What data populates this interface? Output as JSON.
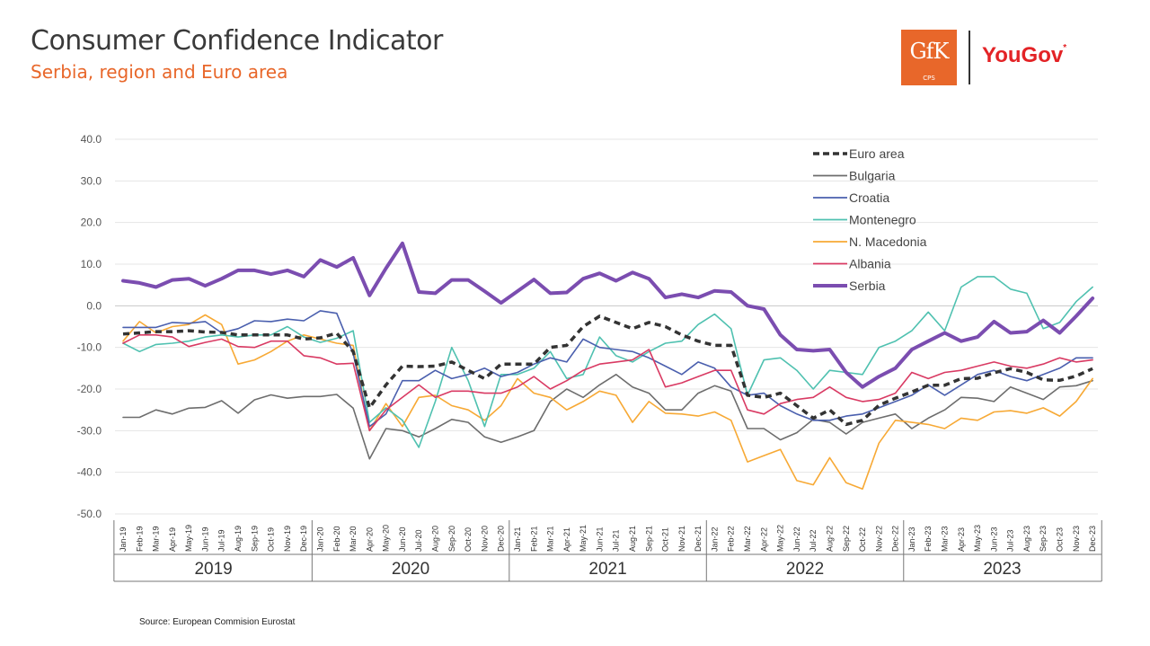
{
  "header": {
    "title": "Consumer Confidence Indicator",
    "subtitle": "Serbia, region and Euro area"
  },
  "logos": {
    "gfk": "GfK",
    "gfk_sub": "CPS",
    "yougov": "YouGov",
    "yougov_mark": "*"
  },
  "footer": {
    "source": "Source: European Commision Eurostat"
  },
  "colors": {
    "Euro area": "#333333",
    "Bulgaria": "#6d6d6d",
    "Croatia": "#4a5fae",
    "Montenegro": "#4fc1b0",
    "N. Macedonia": "#f7a935",
    "Albania": "#d93a63",
    "Serbia": "#7b4db0"
  },
  "chart_data": {
    "type": "line",
    "ylim": [
      -50,
      40
    ],
    "yticks": [
      "40.0",
      "30.0",
      "20.0",
      "10.0",
      "0.0",
      "-10.0",
      "-20.0",
      "-30.0",
      "-40.0",
      "-50.0"
    ],
    "ytick_values": [
      40,
      30,
      20,
      10,
      0,
      -10,
      -20,
      -30,
      -40,
      -50
    ],
    "x": [
      "Jan-19",
      "Feb-19",
      "Mar-19",
      "Apr-19",
      "May-19",
      "Jun-19",
      "Jul-19",
      "Aug-19",
      "Sep-19",
      "Oct-19",
      "Nov-19",
      "Dec-19",
      "Jan-20",
      "Feb-20",
      "Mar-20",
      "Apr-20",
      "May-20",
      "Jun-20",
      "Jul-20",
      "Aug-20",
      "Sep-20",
      "Oct-20",
      "Nov-20",
      "Dec-20",
      "Jan-21",
      "Feb-21",
      "Mar-21",
      "Apr-21",
      "May-21",
      "Jun-21",
      "Jul-21",
      "Aug-21",
      "Sep-21",
      "Oct-21",
      "Nov-21",
      "Dec-21",
      "Jan-22",
      "Feb-22",
      "Mar-22",
      "Apr-22",
      "May-22",
      "Jun-22",
      "Jul-22",
      "Aug-22",
      "Sep-22",
      "Oct-22",
      "Nov-22",
      "Dec-22",
      "Jan-23",
      "Feb-23",
      "Mar-23",
      "Apr-23",
      "May-23",
      "Jun-23",
      "Jul-23",
      "Aug-23",
      "Sep-23",
      "Oct-23",
      "Nov-23",
      "Dec-23"
    ],
    "year_groups": [
      {
        "label": "2019",
        "start": 0,
        "end": 11
      },
      {
        "label": "2020",
        "start": 12,
        "end": 23
      },
      {
        "label": "2021",
        "start": 24,
        "end": 35
      },
      {
        "label": "2022",
        "start": 36,
        "end": 47
      },
      {
        "label": "2023",
        "start": 48,
        "end": 59
      }
    ],
    "legend_position": "top-right",
    "grid": "horizontal",
    "series": [
      {
        "name": "Euro area",
        "style": "dashed",
        "values": [
          -6.8,
          -6.5,
          -6.2,
          -6.2,
          -6.0,
          -6.3,
          -6.4,
          -7.0,
          -7.0,
          -7.0,
          -7.0,
          -8.0,
          -7.7,
          -6.6,
          -11.0,
          -24.5,
          -19.0,
          -14.5,
          -14.6,
          -14.5,
          -13.5,
          -15.5,
          -17.5,
          -14.0,
          -14.0,
          -14.0,
          -10.0,
          -9.5,
          -5.0,
          -2.5,
          -4.0,
          -5.5,
          -4.0,
          -5.0,
          -7.0,
          -8.5,
          -9.5,
          -9.5,
          -21.5,
          -22.0,
          -21.0,
          -24.0,
          -27.0,
          -25.0,
          -28.5,
          -27.5,
          -23.9,
          -22.2,
          -20.7,
          -19.1,
          -19.1,
          -17.5,
          -17.4,
          -16.1,
          -15.1,
          -16.0,
          -17.8,
          -17.9,
          -16.9,
          -15.1
        ]
      },
      {
        "name": "Bulgaria",
        "style": "solid",
        "values": [
          -26.8,
          -26.8,
          -25.0,
          -26.0,
          -24.6,
          -24.4,
          -22.8,
          -25.8,
          -22.6,
          -21.4,
          -22.2,
          -21.8,
          -21.8,
          -21.3,
          -24.6,
          -36.8,
          -29.5,
          -30.0,
          -31.5,
          -29.5,
          -27.3,
          -28.0,
          -31.5,
          -32.8,
          -31.5,
          -30.0,
          -23.0,
          -20.0,
          -22.0,
          -19.0,
          -16.5,
          -19.5,
          -21.0,
          -25.0,
          -25.0,
          -21.0,
          -19.2,
          -20.5,
          -29.5,
          -29.5,
          -32.2,
          -30.5,
          -27.3,
          -28.0,
          -30.8,
          -28.0,
          -27.0,
          -26.0,
          -29.5,
          -27.0,
          -25.0,
          -22.0,
          -22.2,
          -23.0,
          -19.5,
          -21.0,
          -22.5,
          -19.5,
          -19.2,
          -18.0
        ]
      },
      {
        "name": "Croatia",
        "style": "solid",
        "values": [
          -5.2,
          -5.2,
          -5.2,
          -4.0,
          -4.2,
          -3.8,
          -6.5,
          -5.5,
          -3.6,
          -3.8,
          -3.2,
          -3.6,
          -1.2,
          -1.8,
          -11.5,
          -29.0,
          -26.0,
          -18.0,
          -18.0,
          -15.5,
          -17.5,
          -16.5,
          -15.0,
          -17.0,
          -16.0,
          -14.0,
          -12.5,
          -13.5,
          -8.0,
          -10.0,
          -10.5,
          -11.0,
          -12.5,
          -14.5,
          -16.5,
          -13.5,
          -15.0,
          -19.5,
          -21.5,
          -21.0,
          -24.0,
          -26.0,
          -27.5,
          -27.5,
          -26.5,
          -26.0,
          -24.5,
          -23.0,
          -21.5,
          -19.0,
          -21.5,
          -19.0,
          -16.5,
          -15.5,
          -17.0,
          -18.0,
          -16.5,
          -15.0,
          -12.5,
          -12.5
        ]
      },
      {
        "name": "Montenegro",
        "style": "solid",
        "values": [
          -9.0,
          -11.0,
          -9.3,
          -9.0,
          -8.5,
          -7.5,
          -7.0,
          -7.5,
          -7.0,
          -7.0,
          -5.0,
          -7.5,
          -8.8,
          -7.8,
          -6.0,
          -28.0,
          -24.5,
          -27.5,
          -34.0,
          -23.0,
          -10.0,
          -18.0,
          -29.0,
          -16.5,
          -16.5,
          -15.0,
          -11.0,
          -17.5,
          -16.5,
          -7.5,
          -12.0,
          -13.5,
          -11.0,
          -9.0,
          -8.5,
          -4.5,
          -2.0,
          -5.5,
          -21.5,
          -13.0,
          -12.5,
          -15.5,
          -20.0,
          -15.5,
          -16.0,
          -16.5,
          -10.0,
          -8.5,
          -6.0,
          -1.5,
          -6.0,
          4.5,
          7.0,
          7.0,
          4.0,
          3.0,
          -5.5,
          -4.0,
          1.0,
          4.5
        ]
      },
      {
        "name": "N. Macedonia",
        "style": "solid",
        "values": [
          -8.5,
          -3.8,
          -6.5,
          -5.0,
          -4.5,
          -2.2,
          -4.5,
          -14.0,
          -13.0,
          -11.0,
          -8.5,
          -7.0,
          -8.0,
          -9.0,
          -9.5,
          -30.0,
          -23.5,
          -29.0,
          -22.0,
          -21.5,
          -24.0,
          -25.0,
          -27.5,
          -24.0,
          -17.5,
          -21.0,
          -22.0,
          -25.0,
          -23.0,
          -20.5,
          -21.5,
          -28.0,
          -23.0,
          -25.8,
          -26.0,
          -26.5,
          -25.5,
          -27.5,
          -37.5,
          -36.0,
          -34.5,
          -42.0,
          -43.0,
          -36.5,
          -42.5,
          -44.0,
          -33.0,
          -27.5,
          -28.0,
          -28.5,
          -29.5,
          -27.0,
          -27.5,
          -25.5,
          -25.2,
          -25.8,
          -24.5,
          -26.5,
          -23.0,
          -17.5
        ]
      },
      {
        "name": "Albania",
        "style": "solid",
        "values": [
          -9.0,
          -7.0,
          -7.0,
          -7.5,
          -9.8,
          -8.8,
          -8.0,
          -9.8,
          -10.0,
          -8.5,
          -8.5,
          -12.0,
          -12.5,
          -14.0,
          -13.8,
          -30.0,
          -25.0,
          -22.0,
          -19.0,
          -22.0,
          -20.5,
          -20.5,
          -21.0,
          -21.0,
          -19.5,
          -17.0,
          -20.0,
          -18.0,
          -15.5,
          -14.0,
          -13.5,
          -13.0,
          -10.5,
          -19.5,
          -18.5,
          -17.0,
          -15.5,
          -15.5,
          -25.0,
          -26.0,
          -23.5,
          -22.5,
          -22.0,
          -19.5,
          -22.0,
          -23.0,
          -22.5,
          -21.0,
          -16.0,
          -17.5,
          -16.0,
          -15.5,
          -14.5,
          -13.5,
          -14.5,
          -15.0,
          -14.0,
          -12.5,
          -13.5,
          -13.0
        ]
      },
      {
        "name": "Serbia",
        "style": "thick",
        "values": [
          6.0,
          5.5,
          4.5,
          6.2,
          6.5,
          4.8,
          6.5,
          8.5,
          8.5,
          7.6,
          8.5,
          7.0,
          11.0,
          9.3,
          11.5,
          2.5,
          9.0,
          15.0,
          3.3,
          3.0,
          6.2,
          6.2,
          3.5,
          0.7,
          3.5,
          6.3,
          3.0,
          3.2,
          6.5,
          7.8,
          6.0,
          8.0,
          6.5,
          2.0,
          2.8,
          2.0,
          3.6,
          3.3,
          0.0,
          -0.8,
          -7.0,
          -10.5,
          -10.8,
          -10.5,
          -16.0,
          -19.5,
          -17.0,
          -15.0,
          -10.5,
          -8.5,
          -6.5,
          -8.5,
          -7.5,
          -3.8,
          -6.5,
          -6.2,
          -3.5,
          -6.5,
          -2.5,
          1.8
        ]
      }
    ]
  }
}
